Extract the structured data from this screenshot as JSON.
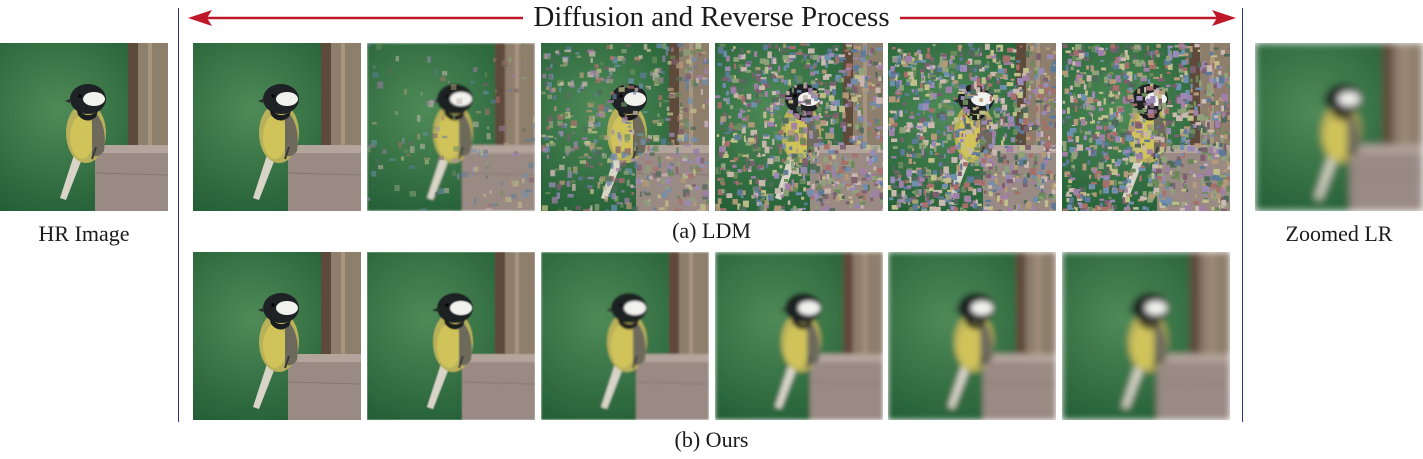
{
  "title": "Diffusion and Reverse Process",
  "colors": {
    "arrow": "#c0182b",
    "divider": "#2d3a7a",
    "background": "#2d6b3c"
  },
  "left": {
    "caption": "HR Image",
    "noise": 0,
    "blur": 0
  },
  "right": {
    "caption": "Zoomed LR",
    "noise": 0,
    "blur": 4
  },
  "rows": [
    {
      "caption": "(a) LDM",
      "tiles": [
        {
          "noise": 0,
          "blur": 0
        },
        {
          "noise": 0.15,
          "blur": 1
        },
        {
          "noise": 0.55,
          "blur": 0
        },
        {
          "noise": 0.9,
          "blur": 0
        },
        {
          "noise": 1,
          "blur": 0
        },
        {
          "noise": 1,
          "blur": 0
        }
      ]
    },
    {
      "caption": "(b) Ours",
      "tiles": [
        {
          "noise": 0,
          "blur": 0
        },
        {
          "noise": 0,
          "blur": 0.5
        },
        {
          "noise": 0,
          "blur": 1
        },
        {
          "noise": 0,
          "blur": 2
        },
        {
          "noise": 0,
          "blur": 3
        },
        {
          "noise": 0,
          "blur": 3.5
        }
      ]
    }
  ]
}
